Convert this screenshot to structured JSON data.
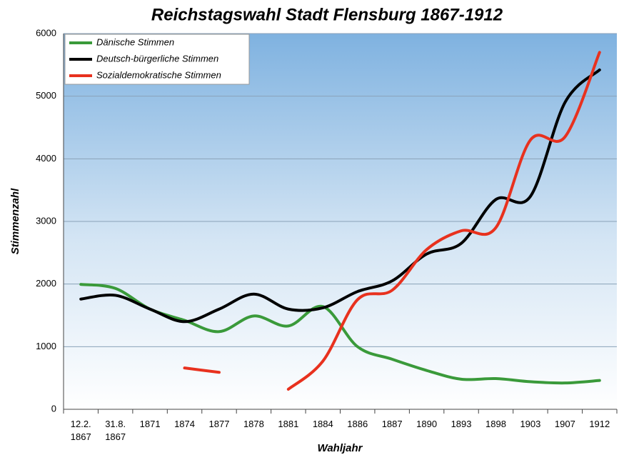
{
  "chart_data": {
    "type": "line",
    "title": "Reichstagswahl Stadt Flensburg 1867-1912",
    "xlabel": "Wahljahr",
    "ylabel": "Stimmenzahl",
    "categories": [
      "12.2.\n1867",
      "31.8.\n1867",
      "1871",
      "1874",
      "1877",
      "1878",
      "1881",
      "1884",
      "1886",
      "1887",
      "1890",
      "1893",
      "1898",
      "1903",
      "1907",
      "1912"
    ],
    "series": [
      {
        "name": "Dänische Stimmen",
        "color": "#3a9a3a",
        "values": [
          1995,
          1930,
          1600,
          1420,
          1240,
          1490,
          1330,
          1640,
          1000,
          800,
          620,
          480,
          490,
          440,
          420,
          460
        ]
      },
      {
        "name": "Deutsch-bürgerliche Stimmen",
        "color": "#000000",
        "values": [
          1760,
          1820,
          1600,
          1400,
          1600,
          1840,
          1600,
          1620,
          1880,
          2050,
          2480,
          2650,
          3350,
          3400,
          4900,
          5420
        ]
      },
      {
        "name": "Sozialdemokratische Stimmen",
        "color": "#e8311e",
        "values": [
          null,
          null,
          null,
          660,
          590,
          null,
          320,
          770,
          1750,
          1900,
          2550,
          2850,
          2900,
          4300,
          4350,
          5700
        ]
      }
    ],
    "ylim": [
      0,
      6000
    ],
    "yticks": [
      0,
      1000,
      2000,
      3000,
      4000,
      5000,
      6000
    ],
    "grid": true,
    "legend": "upper left"
  }
}
